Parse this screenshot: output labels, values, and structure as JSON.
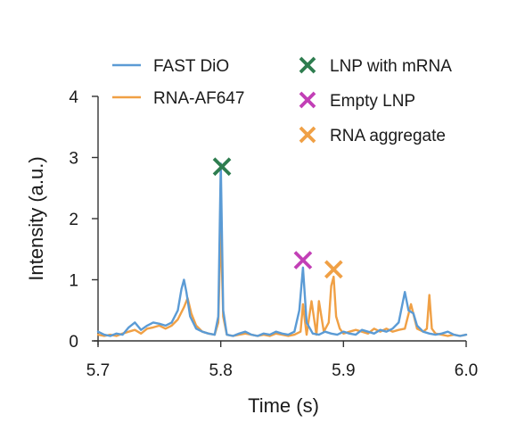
{
  "chart_data": {
    "type": "line",
    "title": "",
    "xlabel": "Time (s)",
    "ylabel": "Intensity (a.u.)",
    "xlim": [
      5.7,
      6.0
    ],
    "ylim": [
      0,
      4
    ],
    "xticks": [
      5.7,
      5.8,
      5.9,
      6.0
    ],
    "xtick_labels": [
      "5.7",
      "5.8",
      "5.9",
      "6.0"
    ],
    "yticks": [
      0,
      1,
      2,
      3,
      4
    ],
    "ytick_labels": [
      "0",
      "1",
      "2",
      "3",
      "4"
    ],
    "grid": false,
    "legend_position": "top",
    "series": [
      {
        "name": "FAST DiO",
        "color": "#5b9bd5",
        "x": [
          5.7,
          5.705,
          5.71,
          5.715,
          5.72,
          5.725,
          5.73,
          5.735,
          5.74,
          5.745,
          5.75,
          5.755,
          5.76,
          5.765,
          5.768,
          5.77,
          5.772,
          5.775,
          5.78,
          5.785,
          5.79,
          5.795,
          5.798,
          5.8,
          5.802,
          5.805,
          5.81,
          5.815,
          5.82,
          5.825,
          5.83,
          5.835,
          5.84,
          5.845,
          5.85,
          5.855,
          5.86,
          5.864,
          5.867,
          5.87,
          5.875,
          5.88,
          5.885,
          5.89,
          5.895,
          5.9,
          5.905,
          5.91,
          5.915,
          5.92,
          5.925,
          5.93,
          5.935,
          5.94,
          5.945,
          5.95,
          5.953,
          5.957,
          5.96,
          5.965,
          5.97,
          5.975,
          5.98,
          5.985,
          5.99,
          5.995,
          6.0
        ],
        "values": [
          0.15,
          0.1,
          0.08,
          0.12,
          0.1,
          0.22,
          0.3,
          0.18,
          0.25,
          0.3,
          0.28,
          0.25,
          0.3,
          0.5,
          0.85,
          1.0,
          0.8,
          0.4,
          0.2,
          0.15,
          0.12,
          0.1,
          0.4,
          2.9,
          0.5,
          0.1,
          0.08,
          0.12,
          0.15,
          0.1,
          0.08,
          0.12,
          0.1,
          0.15,
          0.12,
          0.1,
          0.15,
          0.5,
          1.2,
          0.3,
          0.12,
          0.1,
          0.15,
          0.12,
          0.1,
          0.15,
          0.12,
          0.1,
          0.18,
          0.15,
          0.12,
          0.18,
          0.15,
          0.2,
          0.3,
          0.8,
          0.5,
          0.45,
          0.25,
          0.15,
          0.12,
          0.1,
          0.12,
          0.15,
          0.1,
          0.08,
          0.1
        ]
      },
      {
        "name": "RNA-AF647",
        "color": "#f0a045",
        "x": [
          5.7,
          5.705,
          5.71,
          5.715,
          5.72,
          5.725,
          5.73,
          5.735,
          5.74,
          5.745,
          5.75,
          5.755,
          5.76,
          5.765,
          5.77,
          5.773,
          5.776,
          5.78,
          5.785,
          5.79,
          5.795,
          5.798,
          5.8,
          5.802,
          5.805,
          5.81,
          5.815,
          5.82,
          5.825,
          5.83,
          5.835,
          5.84,
          5.845,
          5.85,
          5.855,
          5.86,
          5.865,
          5.867,
          5.87,
          5.874,
          5.878,
          5.88,
          5.884,
          5.888,
          5.89,
          5.892,
          5.894,
          5.897,
          5.9,
          5.905,
          5.91,
          5.915,
          5.92,
          5.925,
          5.93,
          5.935,
          5.94,
          5.945,
          5.95,
          5.955,
          5.96,
          5.965,
          5.968,
          5.97,
          5.972,
          5.975,
          5.98,
          5.985,
          5.99,
          5.995,
          6.0
        ],
        "values": [
          0.1,
          0.08,
          0.1,
          0.08,
          0.12,
          0.15,
          0.18,
          0.12,
          0.2,
          0.22,
          0.25,
          0.2,
          0.25,
          0.35,
          0.55,
          0.7,
          0.45,
          0.25,
          0.15,
          0.12,
          0.1,
          0.3,
          1.9,
          0.4,
          0.1,
          0.08,
          0.1,
          0.12,
          0.1,
          0.08,
          0.1,
          0.08,
          0.12,
          0.1,
          0.08,
          0.1,
          0.15,
          0.6,
          0.1,
          0.65,
          0.1,
          0.65,
          0.15,
          0.3,
          0.9,
          1.05,
          0.4,
          0.2,
          0.12,
          0.15,
          0.18,
          0.15,
          0.12,
          0.2,
          0.15,
          0.2,
          0.15,
          0.18,
          0.2,
          0.6,
          0.2,
          0.15,
          0.2,
          0.75,
          0.2,
          0.12,
          0.1,
          0.08,
          0.1,
          0.08,
          0.1
        ]
      }
    ],
    "markers": [
      {
        "label": "LNP with mRNA",
        "color": "#2e7d4f",
        "x": 5.801,
        "y": 2.85
      },
      {
        "label": "Empty LNP",
        "color": "#c23fb6",
        "x": 5.867,
        "y": 1.32
      },
      {
        "label": "RNA aggregate",
        "color": "#f0a045",
        "x": 5.892,
        "y": 1.17
      }
    ]
  }
}
